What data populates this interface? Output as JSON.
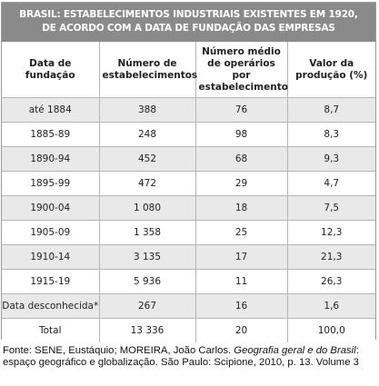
{
  "table": {
    "title_line1": "BRASIL: ESTABELECIMENTOS INDUSTRIAIS EXISTENTES EM 1920,",
    "title_line2": "DE ACORDO COM A DATA DE FUNDAÇÃO DAS EMPRESAS",
    "headers": {
      "col1": "Data de fundação",
      "col2": "Número de estabelecimentos",
      "col3": "Número médio de operários por estabelecimento",
      "col4": "Valor da produção (%)"
    },
    "rows": [
      {
        "date": "até 1884",
        "establishments": "388",
        "avg_workers": "76",
        "production_value": "8,7"
      },
      {
        "date": "1885-89",
        "establishments": "248",
        "avg_workers": "98",
        "production_value": "8,3"
      },
      {
        "date": "1890-94",
        "establishments": "452",
        "avg_workers": "68",
        "production_value": "9,3"
      },
      {
        "date": "1895-99",
        "establishments": "472",
        "avg_workers": "29",
        "production_value": "4,7"
      },
      {
        "date": "1900-04",
        "establishments": "1 080",
        "avg_workers": "18",
        "production_value": "7,5"
      },
      {
        "date": "1905-09",
        "establishments": "1 358",
        "avg_workers": "25",
        "production_value": "12,3"
      },
      {
        "date": "1910-14",
        "establishments": "3 135",
        "avg_workers": "17",
        "production_value": "21,3"
      },
      {
        "date": "1915-19",
        "establishments": "5 936",
        "avg_workers": "11",
        "production_value": "26,3"
      },
      {
        "date": "Data desconhecida*",
        "establishments": "267",
        "avg_workers": "16",
        "production_value": "1,6"
      },
      {
        "date": "Total",
        "establishments": "13 336",
        "avg_workers": "20",
        "production_value": "100,0"
      }
    ]
  },
  "source": {
    "prefix": "Fonte: SENE, Eustáquio; MOREIRA, João Carlos. ",
    "book_title": "Geografia geral e do Brasil",
    "suffix": ": espaço geográfico e globalização. São Paulo: Scipione, 2010, p. 13. Volume 3"
  }
}
